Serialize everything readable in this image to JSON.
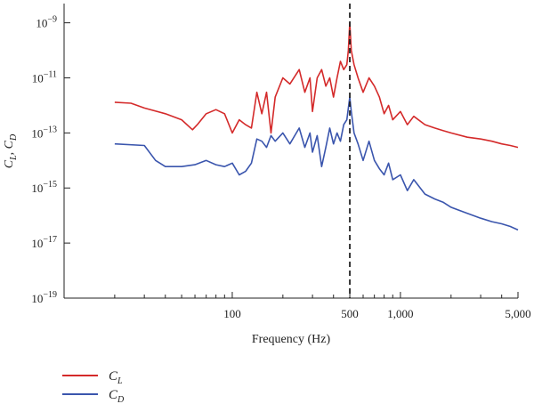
{
  "chart_data": {
    "type": "line",
    "xlabel": "Frequency (Hz)",
    "ylabel_main": "C",
    "ylabel_sub_1": "L",
    "ylabel_sep": ", ",
    "ylabel_sub_2": "D",
    "x_scale": "log",
    "y_scale": "log",
    "xlim": [
      10,
      5000
    ],
    "ylim": [
      1e-19,
      5e-09
    ],
    "x_ticks": [
      {
        "value": 100,
        "label": "100"
      },
      {
        "value": 500,
        "label": "500"
      },
      {
        "value": 1000,
        "label": "1,000"
      },
      {
        "value": 5000,
        "label": "5,000"
      }
    ],
    "y_ticks": [
      {
        "exp": -9,
        "base": "10",
        "sup": "−9"
      },
      {
        "exp": -11,
        "base": "10",
        "sup": "−11"
      },
      {
        "exp": -13,
        "base": "10",
        "sup": "−13"
      },
      {
        "exp": -15,
        "base": "10",
        "sup": "−15"
      },
      {
        "exp": -17,
        "base": "10",
        "sup": "−17"
      },
      {
        "exp": -19,
        "base": "10",
        "sup": "−19"
      }
    ],
    "grid": false,
    "legend_position": "bottom-left, below plot",
    "vline": {
      "x": 500,
      "style": "dashed",
      "color": "#222222"
    },
    "series": [
      {
        "name_main": "C",
        "name_sub": "L",
        "color": "#d42a2a",
        "points": [
          [
            20,
            1.3e-12
          ],
          [
            25,
            1.2e-12
          ],
          [
            30,
            8e-13
          ],
          [
            40,
            5e-13
          ],
          [
            50,
            3e-13
          ],
          [
            58,
            1.3e-13
          ],
          [
            62,
            2e-13
          ],
          [
            70,
            5e-13
          ],
          [
            80,
            7e-13
          ],
          [
            90,
            5e-13
          ],
          [
            100,
            1e-13
          ],
          [
            110,
            3e-13
          ],
          [
            120,
            2e-13
          ],
          [
            130,
            1.5e-13
          ],
          [
            140,
            3e-12
          ],
          [
            150,
            5e-13
          ],
          [
            160,
            3e-12
          ],
          [
            170,
            1e-13
          ],
          [
            180,
            2e-12
          ],
          [
            200,
            1e-11
          ],
          [
            220,
            6e-12
          ],
          [
            250,
            2e-11
          ],
          [
            270,
            3e-12
          ],
          [
            290,
            1e-11
          ],
          [
            300,
            6e-13
          ],
          [
            320,
            1e-11
          ],
          [
            340,
            2e-11
          ],
          [
            360,
            5e-12
          ],
          [
            380,
            1e-11
          ],
          [
            400,
            2e-12
          ],
          [
            420,
            1e-11
          ],
          [
            440,
            4e-11
          ],
          [
            460,
            2e-11
          ],
          [
            480,
            3e-11
          ],
          [
            490,
            1e-10
          ],
          [
            500,
            1e-09
          ],
          [
            510,
            1e-10
          ],
          [
            530,
            3e-11
          ],
          [
            560,
            1e-11
          ],
          [
            600,
            3e-12
          ],
          [
            650,
            1e-11
          ],
          [
            700,
            5e-12
          ],
          [
            750,
            2e-12
          ],
          [
            800,
            5e-13
          ],
          [
            850,
            1e-12
          ],
          [
            900,
            3e-13
          ],
          [
            1000,
            6e-13
          ],
          [
            1100,
            2e-13
          ],
          [
            1200,
            4e-13
          ],
          [
            1400,
            2e-13
          ],
          [
            1600,
            1.5e-13
          ],
          [
            1800,
            1.2e-13
          ],
          [
            2000,
            1e-13
          ],
          [
            2500,
            7e-14
          ],
          [
            3000,
            6e-14
          ],
          [
            3500,
            5e-14
          ],
          [
            4000,
            4e-14
          ],
          [
            4500,
            3.5e-14
          ],
          [
            5000,
            3e-14
          ]
        ]
      },
      {
        "name_main": "C",
        "name_sub": "D",
        "color": "#3a55ad",
        "points": [
          [
            20,
            4e-14
          ],
          [
            30,
            3.5e-14
          ],
          [
            35,
            1e-14
          ],
          [
            40,
            6e-15
          ],
          [
            50,
            6e-15
          ],
          [
            60,
            7e-15
          ],
          [
            70,
            1e-14
          ],
          [
            80,
            7e-15
          ],
          [
            90,
            6e-15
          ],
          [
            100,
            8e-15
          ],
          [
            110,
            3e-15
          ],
          [
            120,
            4e-15
          ],
          [
            130,
            8e-15
          ],
          [
            140,
            6e-14
          ],
          [
            150,
            5e-14
          ],
          [
            160,
            3e-14
          ],
          [
            170,
            8e-14
          ],
          [
            180,
            5e-14
          ],
          [
            200,
            1e-13
          ],
          [
            220,
            4e-14
          ],
          [
            250,
            1.5e-13
          ],
          [
            270,
            3e-14
          ],
          [
            290,
            1e-13
          ],
          [
            300,
            2e-14
          ],
          [
            320,
            8e-14
          ],
          [
            340,
            6e-15
          ],
          [
            360,
            3e-14
          ],
          [
            380,
            1.5e-13
          ],
          [
            400,
            4e-14
          ],
          [
            420,
            1e-13
          ],
          [
            440,
            5e-14
          ],
          [
            460,
            2e-13
          ],
          [
            480,
            3e-13
          ],
          [
            490,
            8e-13
          ],
          [
            500,
            2e-12
          ],
          [
            510,
            6e-13
          ],
          [
            530,
            1e-13
          ],
          [
            560,
            4e-14
          ],
          [
            600,
            1e-14
          ],
          [
            650,
            5e-14
          ],
          [
            700,
            1e-14
          ],
          [
            750,
            5e-15
          ],
          [
            800,
            3e-15
          ],
          [
            850,
            8e-15
          ],
          [
            900,
            2e-15
          ],
          [
            1000,
            3e-15
          ],
          [
            1100,
            8e-16
          ],
          [
            1200,
            2e-15
          ],
          [
            1400,
            6e-16
          ],
          [
            1600,
            4e-16
          ],
          [
            1800,
            3e-16
          ],
          [
            2000,
            2e-16
          ],
          [
            2500,
            1.2e-16
          ],
          [
            3000,
            8e-17
          ],
          [
            3500,
            6e-17
          ],
          [
            4000,
            5e-17
          ],
          [
            4500,
            4e-17
          ],
          [
            5000,
            3e-17
          ]
        ]
      }
    ]
  }
}
